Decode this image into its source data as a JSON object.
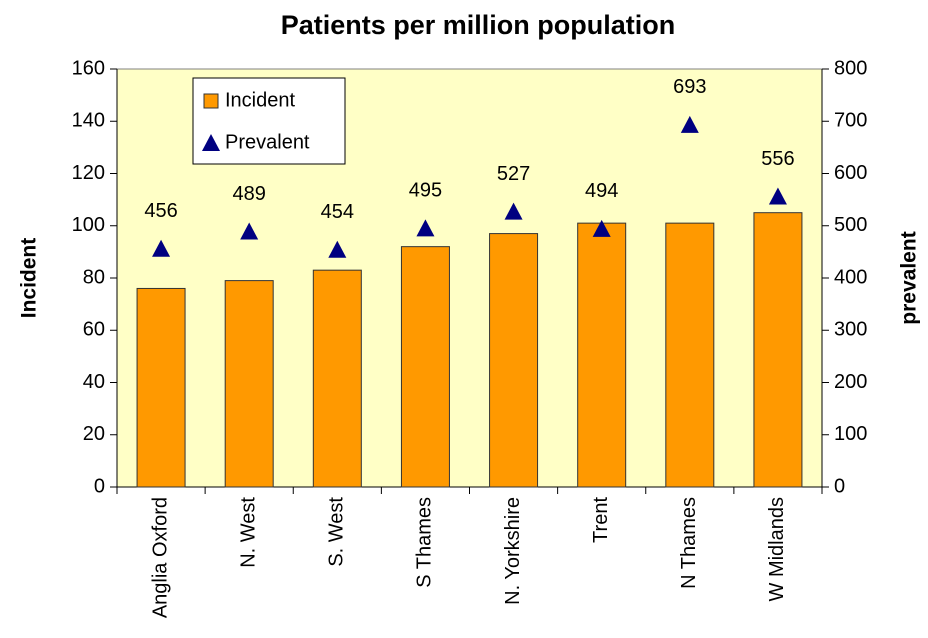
{
  "chart_data": {
    "type": "bar",
    "title": "Patients per million population",
    "categories": [
      "Anglia Oxford",
      "N. West",
      "S. West",
      "S Thames",
      "N. Yorkshire",
      "Trent",
      "N Thames",
      "W Midlands"
    ],
    "series": [
      {
        "name": "Incident",
        "color": "#ff9900",
        "mark": "bar",
        "values": [
          76,
          79,
          83,
          92,
          97,
          101,
          101,
          105
        ]
      },
      {
        "name": "Prevalent",
        "color": "#000080",
        "mark": "triangle",
        "axis": "y2",
        "values": [
          456,
          489,
          454,
          495,
          527,
          494,
          693,
          556
        ]
      }
    ],
    "y_label": "Incident",
    "y2_label": "prevalent",
    "ylim": [
      0,
      160
    ],
    "yticks": [
      0,
      20,
      40,
      60,
      80,
      100,
      120,
      140,
      160
    ],
    "y2lim": [
      0,
      800
    ],
    "y2ticks": [
      0,
      100,
      200,
      300,
      400,
      500,
      600,
      700,
      800
    ],
    "legend": "upper left",
    "data_labels": true
  }
}
